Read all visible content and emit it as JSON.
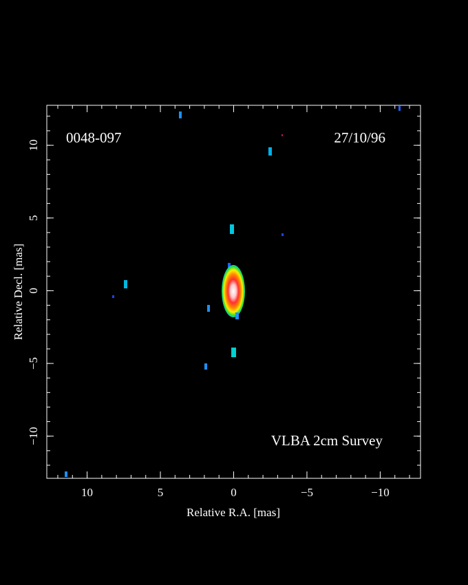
{
  "chart_data": {
    "type": "image",
    "annotations": [
      "0048-097",
      "27/10/96",
      "VLBA 2cm Survey"
    ],
    "xlabel": "Relative R.A. [mas]",
    "ylabel": "Relative Decl. [mas]",
    "xlim": [
      12.75,
      -12.75
    ],
    "ylim": [
      -12.9,
      12.75
    ],
    "xticks": [
      {
        "value": 10,
        "label": "10"
      },
      5,
      0,
      {
        "value": -5,
        "label": "−5"
      },
      {
        "value": -10,
        "label": "−10"
      }
    ],
    "yticks": [
      {
        "value": -10,
        "label": "−10"
      },
      {
        "value": -5,
        "label": "−5"
      },
      0,
      5,
      10
    ],
    "xminorticks": [
      12,
      11,
      10,
      9,
      8,
      7,
      6,
      5,
      4,
      3,
      2,
      1,
      0,
      -1,
      -2,
      -3,
      -4,
      -5,
      -6,
      -7,
      -8,
      -9,
      -10,
      -11,
      -12
    ],
    "yminorticks": [
      -12,
      -11,
      -10,
      -9,
      -8,
      -7,
      -6,
      -5,
      -4,
      -3,
      -2,
      -1,
      0,
      1,
      2,
      3,
      4,
      5,
      6,
      7,
      8,
      9,
      10,
      11,
      12
    ]
  }
}
